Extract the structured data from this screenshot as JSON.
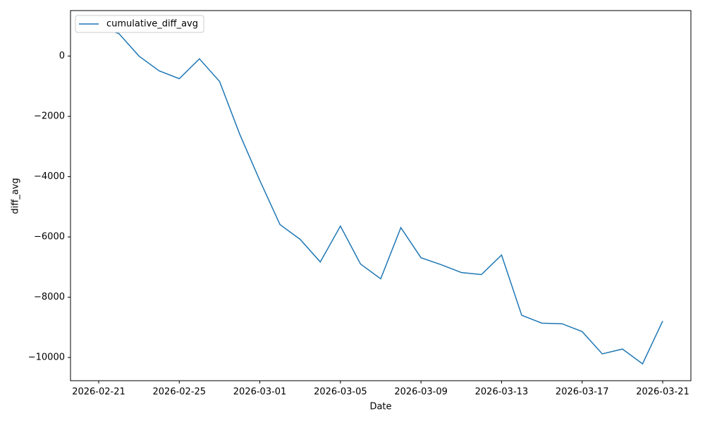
{
  "chart_data": {
    "type": "line",
    "xlabel": "Date",
    "ylabel": "diff_avg",
    "x": [
      "2026-02-21",
      "2026-02-22",
      "2026-02-23",
      "2026-02-24",
      "2026-02-25",
      "2026-02-26",
      "2026-02-27",
      "2026-02-28",
      "2026-03-01",
      "2026-03-02",
      "2026-03-03",
      "2026-03-04",
      "2026-03-05",
      "2026-03-06",
      "2026-03-07",
      "2026-03-08",
      "2026-03-09",
      "2026-03-10",
      "2026-03-11",
      "2026-03-12",
      "2026-03-13",
      "2026-03-14",
      "2026-03-15",
      "2026-03-16",
      "2026-03-17",
      "2026-03-18",
      "2026-03-19",
      "2026-03-20",
      "2026-03-21"
    ],
    "series": [
      {
        "name": "cumulative_diff_avg",
        "color": "#1f77b4",
        "values": [
          950,
          750,
          0,
          -490,
          -750,
          -90,
          -840,
          -2590,
          -4130,
          -5590,
          -6080,
          -6830,
          -5640,
          -6900,
          -7390,
          -5690,
          -6690,
          -6920,
          -7180,
          -7250,
          -6600,
          -8600,
          -8860,
          -8880,
          -9140,
          -9880,
          -9720,
          -10210,
          -8790
        ]
      }
    ],
    "xlim": [
      "2026-02-19T14:24",
      "2026-03-22T09:36"
    ],
    "xticks": [
      "2026-02-21",
      "2026-02-25",
      "2026-03-01",
      "2026-03-05",
      "2026-03-09",
      "2026-03-13",
      "2026-03-17",
      "2026-03-21"
    ],
    "ylim": [
      -10770,
      1510
    ],
    "yticks": [
      {
        "value": -10000,
        "label": "−10000"
      },
      {
        "value": -8000,
        "label": "−8000"
      },
      {
        "value": -6000,
        "label": "−6000"
      },
      {
        "value": -4000,
        "label": "−4000"
      },
      {
        "value": -2000,
        "label": "−2000"
      },
      0
    ],
    "legend": "upper left",
    "grid": false
  }
}
